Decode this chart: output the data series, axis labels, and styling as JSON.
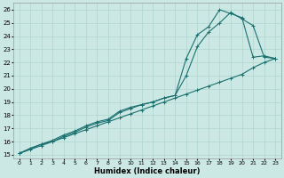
{
  "xlabel": "Humidex (Indice chaleur)",
  "bg_color": "#cce8e4",
  "grid_color": "#afd4cf",
  "line_color": "#1a7070",
  "xlim": [
    -0.5,
    23.5
  ],
  "ylim": [
    14.7,
    26.5
  ],
  "xticks": [
    0,
    1,
    2,
    3,
    4,
    5,
    6,
    7,
    8,
    9,
    10,
    11,
    12,
    13,
    14,
    15,
    16,
    17,
    18,
    19,
    20,
    21,
    22,
    23
  ],
  "yticks": [
    15,
    16,
    17,
    18,
    19,
    20,
    21,
    22,
    23,
    24,
    25,
    26
  ],
  "line1_x": [
    0,
    1,
    2,
    3,
    4,
    5,
    6,
    7,
    8,
    9,
    10,
    11,
    12,
    13,
    14,
    15,
    16,
    17,
    18,
    19,
    20,
    21,
    22,
    23
  ],
  "line1_y": [
    15.1,
    15.4,
    15.7,
    16.0,
    16.3,
    16.6,
    16.9,
    17.2,
    17.5,
    17.8,
    18.1,
    18.4,
    18.7,
    19.0,
    19.3,
    19.6,
    19.9,
    20.2,
    20.5,
    20.8,
    21.1,
    21.6,
    22.0,
    22.3
  ],
  "line2_x": [
    0,
    1,
    2,
    3,
    4,
    5,
    6,
    7,
    8,
    9,
    10,
    11,
    12,
    13,
    14,
    15,
    16,
    17,
    18,
    19,
    20,
    21,
    22,
    23
  ],
  "line2_y": [
    15.1,
    15.5,
    15.8,
    16.0,
    16.4,
    16.7,
    17.1,
    17.4,
    17.6,
    18.2,
    18.5,
    18.8,
    19.0,
    19.3,
    19.5,
    21.0,
    23.2,
    24.3,
    25.0,
    25.8,
    25.3,
    24.8,
    22.4,
    22.3
  ],
  "line3_x": [
    0,
    2,
    3,
    4,
    5,
    6,
    7,
    8,
    9,
    10,
    11,
    12,
    13,
    14,
    15,
    16,
    17,
    18,
    19,
    20,
    21,
    22,
    23
  ],
  "line3_y": [
    15.1,
    15.8,
    16.1,
    16.5,
    16.8,
    17.2,
    17.5,
    17.7,
    18.3,
    18.6,
    18.8,
    19.0,
    19.3,
    19.5,
    22.3,
    24.1,
    24.7,
    26.0,
    25.7,
    25.4,
    22.4,
    22.5,
    22.3
  ]
}
